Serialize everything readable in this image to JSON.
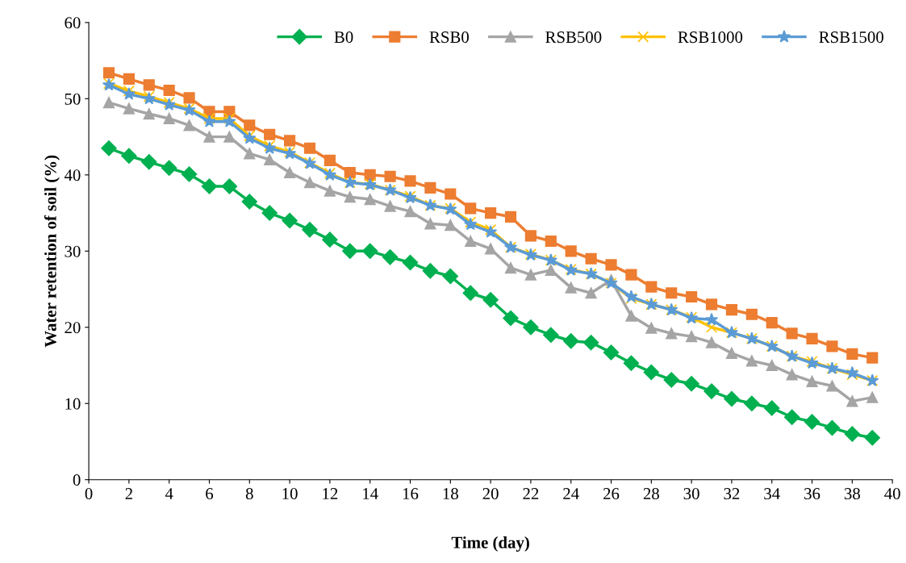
{
  "chart_data": {
    "type": "line",
    "xlabel": "Time (day)",
    "ylabel": "Water retention of soil (%)",
    "x": [
      1,
      2,
      3,
      4,
      5,
      6,
      7,
      8,
      9,
      10,
      11,
      12,
      13,
      14,
      15,
      16,
      17,
      18,
      19,
      20,
      21,
      22,
      23,
      24,
      25,
      26,
      27,
      28,
      29,
      30,
      31,
      32,
      33,
      34,
      35,
      36,
      37,
      38,
      39
    ],
    "xlim": [
      0,
      40
    ],
    "xticks": [
      0,
      2,
      4,
      6,
      8,
      10,
      12,
      14,
      16,
      18,
      20,
      22,
      24,
      26,
      28,
      30,
      32,
      34,
      36,
      38,
      40
    ],
    "ylim": [
      0,
      60
    ],
    "yticks": [
      0,
      10,
      20,
      30,
      40,
      50,
      60
    ],
    "grid": false,
    "legend": "top right",
    "line_style": "solid",
    "series": [
      {
        "name": "B0",
        "color": "#00b050",
        "marker": "diamond",
        "values": [
          43.5,
          42.5,
          41.7,
          40.9,
          40.1,
          38.5,
          38.5,
          36.5,
          35,
          34,
          32.8,
          31.5,
          30,
          30,
          29.2,
          28.5,
          27.4,
          26.7,
          24.5,
          23.6,
          21.2,
          20,
          19,
          18.2,
          18,
          16.7,
          15.3,
          14.1,
          13.1,
          12.6,
          11.6,
          10.6,
          10,
          9.4,
          8.2,
          7.6,
          6.8,
          6,
          5.5
        ]
      },
      {
        "name": "RSB0",
        "color": "#ed7d31",
        "marker": "square",
        "values": [
          53.4,
          52.6,
          51.8,
          51.1,
          50.1,
          48.3,
          48.3,
          46.5,
          45.3,
          44.5,
          43.5,
          41.9,
          40.3,
          40,
          39.8,
          39.2,
          38.3,
          37.5,
          35.6,
          35,
          34.5,
          32,
          31.3,
          30,
          29,
          28.2,
          26.9,
          25.3,
          24.5,
          24,
          23,
          22.3,
          21.7,
          20.6,
          19.2,
          18.5,
          17.5,
          16.5,
          16
        ]
      },
      {
        "name": "RSB500",
        "color": "#a5a5a5",
        "marker": "triangle",
        "values": [
          49.5,
          48.7,
          48,
          47.4,
          46.5,
          45,
          45,
          42.8,
          42,
          40.3,
          39,
          37.9,
          37.1,
          36.8,
          35.9,
          35.2,
          33.6,
          33.4,
          31.3,
          30.3,
          27.8,
          26.9,
          27.5,
          25.2,
          24.5,
          26.2,
          21.5,
          19.9,
          19.2,
          18.8,
          18,
          16.6,
          15.6,
          15,
          13.8,
          12.9,
          12.3,
          10.3,
          10.8
        ]
      },
      {
        "name": "RSB1000",
        "color": "#ffc000",
        "marker": "cross",
        "values": [
          52,
          51,
          50.3,
          49.5,
          48.7,
          47.4,
          47.4,
          45.1,
          43.8,
          43,
          41.6,
          40.2,
          39,
          38.8,
          38,
          37.2,
          36,
          35.6,
          33.8,
          32.8,
          30.5,
          29.6,
          28.8,
          27.6,
          27,
          25.8,
          23.8,
          23,
          22.3,
          21.3,
          20,
          19.3,
          18.5,
          17.5,
          16.2,
          15.5,
          14.6,
          13.8,
          13
        ]
      },
      {
        "name": "RSB1500",
        "color": "#5b9bd5",
        "marker": "star",
        "values": [
          51.8,
          50.6,
          50,
          49.2,
          48.5,
          47,
          47,
          44.8,
          43.5,
          42.8,
          41.5,
          40,
          39,
          38.7,
          38,
          37,
          36,
          35.5,
          33.5,
          32.5,
          30.5,
          29.5,
          28.8,
          27.5,
          27,
          25.8,
          24,
          23,
          22.3,
          21.2,
          21,
          19.3,
          18.5,
          17.5,
          16.2,
          15.3,
          14.6,
          14,
          13
        ]
      }
    ]
  }
}
